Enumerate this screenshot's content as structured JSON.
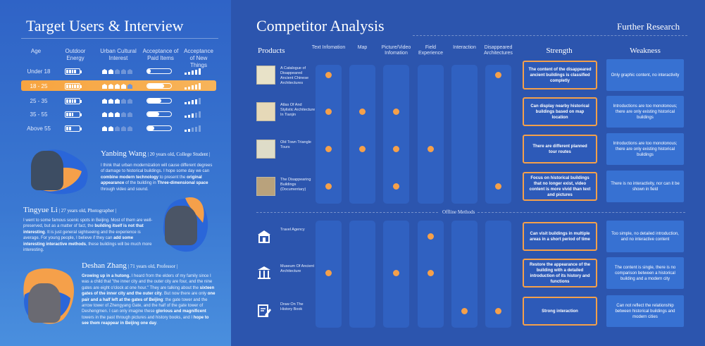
{
  "left": {
    "title": "Target Users & Interview",
    "columns": [
      "Age",
      "Outdoor Energy",
      "Urban Cultural Interest",
      "Acceptance of Paid Items",
      "Acceptance of New Things"
    ],
    "rows": [
      {
        "age": "Under 18",
        "energy": 4,
        "interest": 2,
        "paid": 0.15,
        "new": 5
      },
      {
        "age": "18 - 25",
        "energy": 5,
        "interest": 4,
        "paid": 0.7,
        "new": 5,
        "highlighted": true
      },
      {
        "age": "25 - 35",
        "energy": 4,
        "interest": 3,
        "paid": 0.6,
        "new": 4
      },
      {
        "age": "35 - 55",
        "energy": 3,
        "interest": 3,
        "paid": 0.5,
        "new": 3
      },
      {
        "age": "Above 55",
        "energy": 2,
        "interest": 2,
        "paid": 0.3,
        "new": 2
      }
    ],
    "people": [
      {
        "name": "Yanbing Wang",
        "meta": " | 20 years old, College Student |",
        "text": "I think that urban modernization will cause different degrees of damage to historical buildings. I hope some day we can combine modern technology to present the original appearance of the building in Three-dimensional space through video and sound."
      },
      {
        "name": "Tingyue Li",
        "meta": " | 27 years old, Photographer |",
        "text": "I went to some famous scenic spots in Beijing. Most of them are well-preserved, but as a matter of fact, the building itself is not that interesting. It is just general sightseeing and the experience is average. For young people, I believe if they can add some interesting interactive methods, these buildings will be much more interesting."
      },
      {
        "name": "Deshan Zhang",
        "meta": " | 71 years old, Professor |",
        "text": "Growing up in a hutong. I heard from the elders of my family since I was a child that \"the inner city and the outer city are four, and the nine gates are eight o'clock at one hour.\" They are talking about the sixteen gates of the inner city and the outer city. But now there are only one pair and a half left at the gates of Beijing: the gate tower and the arrow tower of Zhengyang Gate, and the half of the gate tower of Deshengmen. I can only imagine these glorious and magnificent towers in the past through pictures and history books, and I hope to see them reappear in Beijing one day."
      }
    ]
  },
  "right": {
    "title": "Competitor Analysis",
    "further": "Further Research",
    "products_header": "Products",
    "feature_cols": [
      "Text Infomation",
      "Map",
      "Picture/Video Infomation",
      "Field Experience",
      "Interaction",
      "Disappeared Architectures"
    ],
    "strength_header": "Strength",
    "weakness_header": "Weakness",
    "offline_label": "Offline Methods",
    "products": [
      {
        "name": "A Catalogue of Disappeared Ancient Chinese Architectures",
        "features": [
          1,
          0,
          0,
          0,
          0,
          1
        ],
        "strength": "The content of the disappeared ancient buildings is classified completly",
        "weakness": "Only graphic content, no interactivity"
      },
      {
        "name": "Atlas Of And Stylistic Architecture In Tianjin",
        "features": [
          1,
          1,
          1,
          0,
          0,
          0
        ],
        "strength": "Can display nearby historical buildings based on map location",
        "weakness": "Introductions are too monotonous; there are only existing historical buildings"
      },
      {
        "name": "Old Town Triangle Tours",
        "features": [
          1,
          1,
          1,
          1,
          0,
          0
        ],
        "strength": "There are different planned tour routes",
        "weakness": "Introductions are too monotonous; there are only existing historical buildings"
      },
      {
        "name": "The Disappearing Buildings (Documentary)",
        "features": [
          1,
          0,
          1,
          0,
          0,
          1
        ],
        "strength": "Focus on historical buildings that no longer exist, video content is more vivid than text and pictures",
        "weakness": "There is no interactivity, nor can it be shown in field"
      },
      {
        "name": "Travel Agency",
        "features": [
          0,
          0,
          0,
          1,
          0,
          0
        ],
        "strength": "Can visit buildings in multiple areas in a short period of time",
        "weakness": "Too simple, no detailed introduction, and no interactive content"
      },
      {
        "name": "Museum Of Ancient Architecture",
        "features": [
          1,
          0,
          1,
          1,
          0,
          0
        ],
        "strength": "Restore the appearance of the building with a detailed introduction of its history and functions",
        "weakness": "The content is single, there is no comparison between a historical building and a modern city"
      },
      {
        "name": "Draw On The History Book",
        "features": [
          0,
          0,
          0,
          0,
          1,
          1
        ],
        "strength": "Strong interaction",
        "weakness": "Can not reflect the relationship between historical buildings and modern cities"
      }
    ]
  },
  "colors": {
    "accent": "#f5a04a",
    "bg_left": "#2f63c6",
    "bg_right": "#2c55ae"
  }
}
